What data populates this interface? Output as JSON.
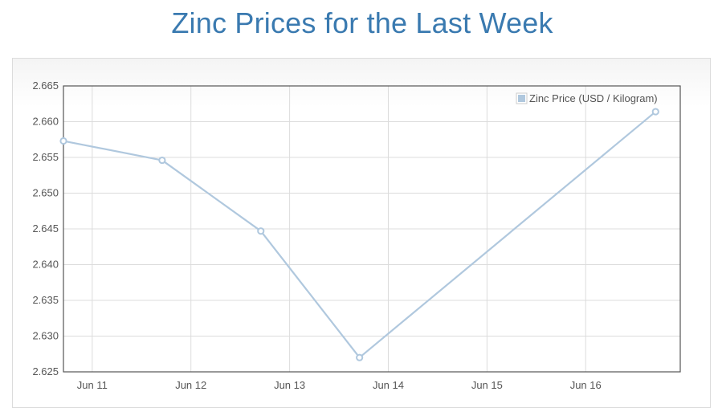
{
  "page": {
    "title": "Zinc Prices for the Last Week"
  },
  "chart_data": {
    "type": "line",
    "title": "Zinc Prices for the Last Week",
    "xlabel": "",
    "ylabel": "",
    "x_tick_labels": [
      "Jun 11",
      "Jun 12",
      "Jun 13",
      "Jun 14",
      "Jun 15",
      "Jun 16"
    ],
    "y_tick_labels": [
      "2.665",
      "2.660",
      "2.655",
      "2.650",
      "2.645",
      "2.640",
      "2.635",
      "2.630",
      "2.625"
    ],
    "ylim": [
      2.625,
      2.665
    ],
    "xlim": [
      "2014-06-10 17:00",
      "2014-06-16 23:00"
    ],
    "grid": true,
    "legend_position": "top-right",
    "series": [
      {
        "name": "Zinc Price (USD / Kilogram)",
        "color": "#b0c8de",
        "x": [
          "2014-06-10 17:00",
          "2014-06-11 17:00",
          "2014-06-12 17:00",
          "2014-06-13 17:00",
          "2014-06-16 17:00"
        ],
        "values": [
          2.6573,
          2.6546,
          2.6447,
          2.627,
          2.6614
        ]
      }
    ]
  }
}
